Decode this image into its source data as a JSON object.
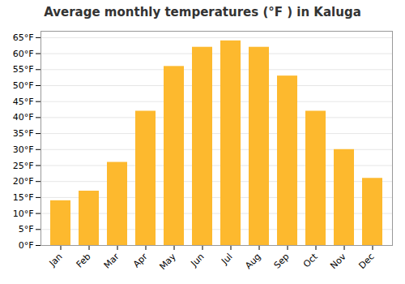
{
  "chart_data": {
    "type": "bar",
    "title": "Average monthly temperatures (°F ) in Kaluga",
    "categories": [
      "Jan",
      "Feb",
      "Mar",
      "Apr",
      "May",
      "Jun",
      "Jul",
      "Aug",
      "Sep",
      "Oct",
      "Nov",
      "Dec"
    ],
    "values": [
      14,
      17,
      26,
      42,
      56,
      62,
      64,
      62,
      53,
      42,
      30,
      21
    ],
    "color": "#FDB92E",
    "ylim": [
      0,
      67
    ],
    "yticks": [
      {
        "value": 0,
        "label": "0°F"
      },
      {
        "value": 5,
        "label": "5°F"
      },
      {
        "value": 10,
        "label": "10°F"
      },
      {
        "value": 15,
        "label": "15°F"
      },
      {
        "value": 20,
        "label": "20°F"
      },
      {
        "value": 25,
        "label": "25°F"
      },
      {
        "value": 30,
        "label": "30°F"
      },
      {
        "value": 35,
        "label": "35°F"
      },
      {
        "value": 40,
        "label": "40°F"
      },
      {
        "value": 45,
        "label": "45°F"
      },
      {
        "value": 50,
        "label": "50°F"
      },
      {
        "value": 55,
        "label": "55°F"
      },
      {
        "value": 60,
        "label": "60°F"
      },
      {
        "value": 65,
        "label": "65°F"
      }
    ],
    "grid": true
  }
}
